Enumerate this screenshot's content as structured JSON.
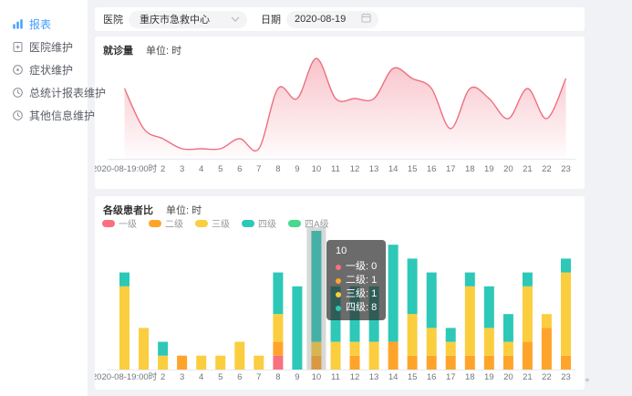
{
  "app": {
    "background": "#f0f2f5",
    "accent": "#409EFF"
  },
  "sidebar": {
    "items": [
      {
        "label": "报表",
        "icon": "bar-chart-icon",
        "active": true
      },
      {
        "label": "医院维护",
        "icon": "hospital-file-icon",
        "active": false
      },
      {
        "label": "症状维护",
        "icon": "symptom-target-icon",
        "active": false
      },
      {
        "label": "总统计报表维护",
        "icon": "stats-clock-icon",
        "active": false
      },
      {
        "label": "其他信息维护",
        "icon": "info-clock-icon",
        "active": false
      }
    ]
  },
  "toolbar": {
    "hospital_label": "医院",
    "hospital_value": "重庆市急救中心",
    "date_label": "日期",
    "date_value": "2020-08-19"
  },
  "visits_chart": {
    "title": "就诊量",
    "unit_label": "单位: 时"
  },
  "level_chart": {
    "title": "各级患者比",
    "unit_label": "单位: 时"
  },
  "tooltip": {
    "title": "10",
    "rows": [
      {
        "label": "一级",
        "value": "0",
        "color": "#F9707F"
      },
      {
        "label": "二级",
        "value": "1",
        "color": "#FFA42B"
      },
      {
        "label": "三级",
        "value": "1",
        "color": "#FBCE3F"
      },
      {
        "label": "四级",
        "value": "8",
        "color": "#2DC8B8"
      }
    ]
  },
  "chart_data": [
    {
      "type": "area",
      "title": "就诊量",
      "xlabel": "",
      "ylabel": "",
      "x_labels": [
        "2020-08-19:00时",
        "",
        "2",
        "3",
        "4",
        "5",
        "6",
        "7",
        "8",
        "9",
        "10",
        "11",
        "12",
        "13",
        "14",
        "15",
        "16",
        "17",
        "18",
        "19",
        "20",
        "21",
        "22",
        "23"
      ],
      "hours": [
        0,
        1,
        2,
        3,
        4,
        5,
        6,
        7,
        8,
        9,
        10,
        11,
        12,
        13,
        14,
        15,
        16,
        17,
        18,
        19,
        20,
        21,
        22,
        23
      ],
      "values": [
        7,
        3,
        2,
        1,
        1,
        1,
        2,
        1,
        7,
        6,
        10,
        6,
        6,
        6,
        9,
        8,
        7,
        3,
        7,
        6,
        4,
        7,
        4,
        8
      ],
      "ylim": [
        0,
        10
      ],
      "smooth": true,
      "grid": false,
      "line_color": "#EE6F80",
      "fill_from": "rgba(238,111,128,0.42)",
      "fill_to": "rgba(238,111,128,0.02)"
    },
    {
      "type": "bar",
      "stacked": true,
      "title": "各级患者比",
      "x_labels": [
        "2020-08-19:00时",
        "",
        "2",
        "3",
        "4",
        "5",
        "6",
        "7",
        "8",
        "9",
        "10",
        "11",
        "12",
        "13",
        "14",
        "15",
        "16",
        "17",
        "18",
        "19",
        "20",
        "21",
        "22",
        "23"
      ],
      "hours": [
        0,
        1,
        2,
        3,
        4,
        5,
        6,
        7,
        8,
        9,
        10,
        11,
        12,
        13,
        14,
        15,
        16,
        17,
        18,
        19,
        20,
        21,
        22,
        23
      ],
      "series": [
        {
          "name": "一级",
          "color": "#F9707F",
          "values": [
            0,
            0,
            0,
            0,
            0,
            0,
            0,
            0,
            1,
            0,
            0,
            0,
            0,
            0,
            0,
            0,
            0,
            0,
            0,
            0,
            0,
            0,
            0,
            0
          ]
        },
        {
          "name": "二级",
          "color": "#FFA42B",
          "values": [
            0,
            0,
            0,
            1,
            0,
            0,
            0,
            0,
            1,
            0,
            1,
            0,
            1,
            0,
            2,
            1,
            1,
            1,
            1,
            1,
            1,
            2,
            3,
            1
          ]
        },
        {
          "name": "三级",
          "color": "#FBCE3F",
          "values": [
            6,
            3,
            1,
            0,
            1,
            1,
            2,
            1,
            2,
            0,
            1,
            2,
            1,
            2,
            0,
            3,
            2,
            1,
            5,
            2,
            1,
            4,
            1,
            6
          ]
        },
        {
          "name": "四级",
          "color": "#2DC8B8",
          "values": [
            1,
            0,
            1,
            0,
            0,
            0,
            0,
            0,
            3,
            6,
            8,
            4,
            4,
            4,
            7,
            4,
            4,
            1,
            1,
            3,
            2,
            1,
            0,
            1
          ]
        },
        {
          "name": "四A级",
          "color": "#47D98F",
          "values": [
            0,
            0,
            0,
            0,
            0,
            0,
            0,
            0,
            0,
            0,
            0,
            0,
            0,
            0,
            0,
            0,
            0,
            0,
            0,
            0,
            0,
            0,
            0,
            0
          ]
        }
      ],
      "hover_index": 10,
      "ylim": [
        0,
        10
      ],
      "legend_position": "top-left",
      "grid": false
    }
  ],
  "misc": {
    "resize_glyph": "+"
  }
}
